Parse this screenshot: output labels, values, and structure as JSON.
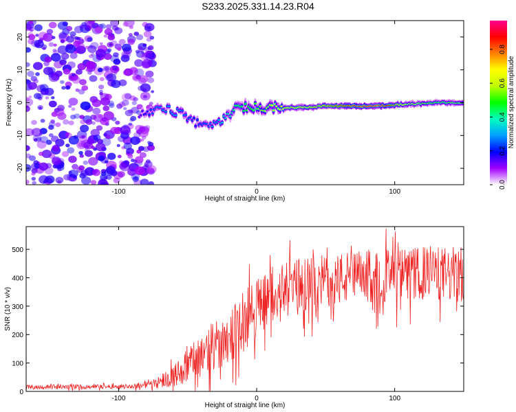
{
  "figure_title": "S233.2025.331.14.23.R04",
  "chart_data": [
    {
      "type": "heatmap",
      "xlabel": "Height of straight line (km)",
      "ylabel": "Frequency (Hz)",
      "xlim": [
        -167,
        150
      ],
      "ylim": [
        -25,
        25
      ],
      "xticks": [
        -100,
        0,
        100
      ],
      "yticks": [
        -20,
        -10,
        0,
        10,
        20
      ],
      "colorbar": {
        "label": "Normalized spectral amplitude",
        "range": [
          0,
          0.97
        ],
        "ticks": [
          0.0,
          0.2,
          0.4,
          0.6,
          0.8
        ],
        "colors": [
          "#ffffff",
          "#a000ff",
          "#0000ff",
          "#00a0ff",
          "#00ffc0",
          "#00ff00",
          "#c0ff00",
          "#ffff00",
          "#ff8000",
          "#ff0000",
          "#ff0090"
        ]
      },
      "ridge": {
        "x": [
          -85,
          -75,
          -65,
          -55,
          -45,
          -35,
          -25,
          -15,
          -5,
          5,
          15,
          25,
          35,
          50,
          70,
          90,
          110,
          130,
          150
        ],
        "frequency": [
          -4,
          -2,
          -2,
          -3,
          -6,
          -7,
          -5,
          -2,
          -1,
          -2,
          -1.5,
          -1.5,
          -1.5,
          -1,
          -1,
          -1,
          -0.5,
          0,
          0
        ],
        "amplitude": [
          0.15,
          0.25,
          0.3,
          0.28,
          0.22,
          0.25,
          0.35,
          0.45,
          0.5,
          0.55,
          0.65,
          0.7,
          0.7,
          0.75,
          0.9,
          0.95,
          0.6,
          0.5,
          0.55
        ]
      },
      "noise_region": {
        "x_range": [
          -167,
          -75
        ],
        "frequency_range": [
          -25,
          25
        ],
        "amplitude": 0.05
      }
    },
    {
      "type": "line",
      "xlabel": "Height of straight line (km)",
      "ylabel": "SNR (10 * v/v)",
      "xlim": [
        -167,
        150
      ],
      "ylim": [
        0,
        580
      ],
      "xticks": [
        -100,
        0,
        100
      ],
      "yticks": [
        0,
        100,
        200,
        300,
        400,
        500
      ],
      "color": "#ee2222",
      "envelope": {
        "x": [
          -167,
          -90,
          -80,
          -70,
          -60,
          -50,
          -40,
          -30,
          -20,
          -10,
          0,
          10,
          20,
          30,
          40,
          50,
          60,
          70,
          80,
          90,
          100,
          110,
          120,
          130,
          140,
          150
        ],
        "mean": [
          15,
          18,
          25,
          35,
          55,
          90,
          130,
          160,
          200,
          240,
          300,
          330,
          350,
          370,
          380,
          390,
          395,
          400,
          405,
          405,
          410,
          410,
          415,
          415,
          410,
          410
        ],
        "spread": [
          8,
          8,
          15,
          25,
          40,
          60,
          80,
          90,
          100,
          110,
          110,
          100,
          100,
          100,
          95,
          95,
          95,
          95,
          95,
          95,
          95,
          95,
          95,
          95,
          100,
          100
        ]
      }
    }
  ]
}
